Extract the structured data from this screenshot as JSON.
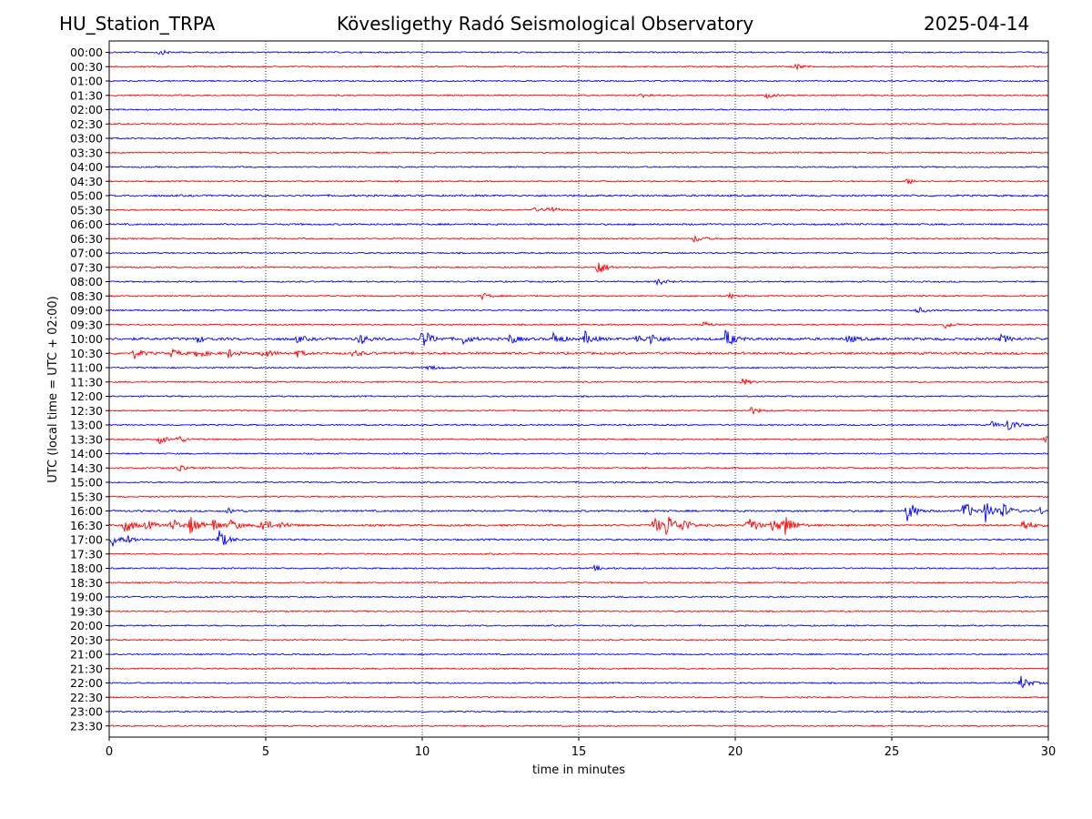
{
  "header": {
    "station": "HU_Station_TRPA",
    "observatory": "Kövesligethy Radó Seismological Observatory",
    "date": "2025-04-14"
  },
  "chart_data": {
    "type": "line",
    "title": "Kövesligethy Radó Seismological Observatory",
    "xlabel": "time in minutes",
    "ylabel": "UTC (local time = UTC + 02:00)",
    "xlim": [
      0,
      30
    ],
    "xticks": [
      "0",
      "5",
      "10",
      "15",
      "20",
      "25",
      "30"
    ],
    "x_grid": "dotted vertical lines at 5-minute intervals",
    "colors": {
      "even_rows": "#0000ff",
      "odd_rows": "#ff0000"
    },
    "rows": [
      "00:00",
      "00:30",
      "01:00",
      "01:30",
      "02:00",
      "02:30",
      "03:00",
      "03:30",
      "04:00",
      "04:30",
      "05:00",
      "05:30",
      "06:00",
      "06:30",
      "07:00",
      "07:30",
      "08:00",
      "08:30",
      "09:00",
      "09:30",
      "10:00",
      "10:30",
      "11:00",
      "11:30",
      "12:00",
      "12:30",
      "13:00",
      "13:30",
      "14:00",
      "14:30",
      "15:00",
      "15:30",
      "16:00",
      "16:30",
      "17:00",
      "17:30",
      "18:00",
      "18:30",
      "19:00",
      "19:30",
      "20:00",
      "20:30",
      "21:00",
      "21:30",
      "22:00",
      "22:30",
      "23:00",
      "23:30"
    ],
    "noise_level": [
      1,
      1,
      1,
      1,
      1,
      1,
      1,
      1,
      1,
      1,
      1.3,
      1,
      1.2,
      1,
      1,
      1,
      1,
      1,
      1,
      1,
      1.8,
      1.6,
      1,
      1,
      1,
      1,
      1,
      1,
      1,
      1,
      1,
      1,
      1.3,
      1.4,
      1.2,
      1,
      1,
      1,
      1,
      1,
      1,
      1,
      1,
      1,
      1,
      1,
      1,
      1
    ],
    "events": [
      {
        "row": "00:00",
        "t": 1.6,
        "amp": 0.3
      },
      {
        "row": "00:30",
        "t": 21.9,
        "amp": 0.4
      },
      {
        "row": "01:30",
        "t": 17.0,
        "amp": 0.3
      },
      {
        "row": "01:30",
        "t": 21.0,
        "amp": 0.3
      },
      {
        "row": "04:30",
        "t": 25.5,
        "amp": 0.35
      },
      {
        "row": "05:30",
        "t": 14.0,
        "amp": 0.5
      },
      {
        "row": "05:30",
        "t": 13.5,
        "amp": 0.3
      },
      {
        "row": "06:30",
        "t": 18.7,
        "amp": 0.5
      },
      {
        "row": "07:30",
        "t": 15.6,
        "amp": 1.1
      },
      {
        "row": "08:00",
        "t": 17.5,
        "amp": 0.45
      },
      {
        "row": "08:30",
        "t": 11.9,
        "amp": 0.4
      },
      {
        "row": "08:30",
        "t": 19.8,
        "amp": 0.35
      },
      {
        "row": "09:00",
        "t": 25.8,
        "amp": 0.45
      },
      {
        "row": "09:30",
        "t": 26.7,
        "amp": 0.45
      },
      {
        "row": "09:30",
        "t": 19.0,
        "amp": 0.3
      },
      {
        "row": "10:00",
        "t": 8.0,
        "amp": 0.7
      },
      {
        "row": "10:00",
        "t": 10.0,
        "amp": 1.3
      },
      {
        "row": "10:00",
        "t": 11.3,
        "amp": 0.6
      },
      {
        "row": "10:00",
        "t": 12.8,
        "amp": 0.6
      },
      {
        "row": "10:00",
        "t": 14.2,
        "amp": 0.8
      },
      {
        "row": "10:00",
        "t": 15.2,
        "amp": 0.8
      },
      {
        "row": "10:00",
        "t": 16.8,
        "amp": 0.6
      },
      {
        "row": "10:00",
        "t": 17.3,
        "amp": 0.7
      },
      {
        "row": "10:00",
        "t": 19.7,
        "amp": 1.2
      },
      {
        "row": "10:00",
        "t": 23.6,
        "amp": 0.5
      },
      {
        "row": "10:00",
        "t": 28.5,
        "amp": 0.5
      },
      {
        "row": "10:00",
        "t": 2.8,
        "amp": 0.4
      },
      {
        "row": "10:00",
        "t": 6.0,
        "amp": 0.4
      },
      {
        "row": "10:30",
        "t": 0.8,
        "amp": 0.6
      },
      {
        "row": "10:30",
        "t": 2.0,
        "amp": 0.5
      },
      {
        "row": "10:30",
        "t": 2.8,
        "amp": 0.6
      },
      {
        "row": "10:30",
        "t": 3.8,
        "amp": 0.5
      },
      {
        "row": "10:30",
        "t": 4.9,
        "amp": 0.7
      },
      {
        "row": "10:30",
        "t": 6.0,
        "amp": 0.4
      },
      {
        "row": "10:30",
        "t": 7.8,
        "amp": 0.4
      },
      {
        "row": "11:00",
        "t": 10.2,
        "amp": 0.35
      },
      {
        "row": "11:30",
        "t": 20.2,
        "amp": 0.45
      },
      {
        "row": "12:30",
        "t": 20.5,
        "amp": 0.45
      },
      {
        "row": "13:00",
        "t": 28.7,
        "amp": 0.9
      },
      {
        "row": "13:00",
        "t": 28.2,
        "amp": 0.4
      },
      {
        "row": "13:30",
        "t": 1.6,
        "amp": 0.6
      },
      {
        "row": "13:30",
        "t": 2.2,
        "amp": 0.45
      },
      {
        "row": "13:30",
        "t": 29.9,
        "amp": 0.35
      },
      {
        "row": "14:30",
        "t": 2.2,
        "amp": 0.6
      },
      {
        "row": "16:00",
        "t": 25.5,
        "amp": 1.5
      },
      {
        "row": "16:00",
        "t": 27.3,
        "amp": 1.3
      },
      {
        "row": "16:00",
        "t": 28.0,
        "amp": 1.4
      },
      {
        "row": "16:00",
        "t": 28.5,
        "amp": 1.0
      },
      {
        "row": "16:00",
        "t": 29.7,
        "amp": 0.5
      },
      {
        "row": "16:00",
        "t": 3.8,
        "amp": 0.35
      },
      {
        "row": "16:30",
        "t": 0.5,
        "amp": 1.1
      },
      {
        "row": "16:30",
        "t": 1.2,
        "amp": 0.6
      },
      {
        "row": "16:30",
        "t": 2.0,
        "amp": 0.9
      },
      {
        "row": "16:30",
        "t": 2.6,
        "amp": 1.2
      },
      {
        "row": "16:30",
        "t": 3.3,
        "amp": 0.9
      },
      {
        "row": "16:30",
        "t": 3.9,
        "amp": 0.7
      },
      {
        "row": "16:30",
        "t": 4.8,
        "amp": 1.3
      },
      {
        "row": "16:30",
        "t": 5.5,
        "amp": 0.4
      },
      {
        "row": "16:30",
        "t": 17.4,
        "amp": 1.1
      },
      {
        "row": "16:30",
        "t": 17.8,
        "amp": 1.5
      },
      {
        "row": "16:30",
        "t": 18.3,
        "amp": 0.8
      },
      {
        "row": "16:30",
        "t": 20.4,
        "amp": 1.4
      },
      {
        "row": "16:30",
        "t": 21.2,
        "amp": 1.0
      },
      {
        "row": "16:30",
        "t": 21.6,
        "amp": 1.3
      },
      {
        "row": "16:30",
        "t": 29.2,
        "amp": 0.8
      },
      {
        "row": "17:00",
        "t": 0.1,
        "amp": 0.9
      },
      {
        "row": "17:00",
        "t": 0.6,
        "amp": 0.4
      },
      {
        "row": "17:00",
        "t": 3.5,
        "amp": 1.3
      },
      {
        "row": "18:00",
        "t": 15.5,
        "amp": 0.3
      },
      {
        "row": "22:00",
        "t": 29.1,
        "amp": 1.0
      }
    ]
  }
}
